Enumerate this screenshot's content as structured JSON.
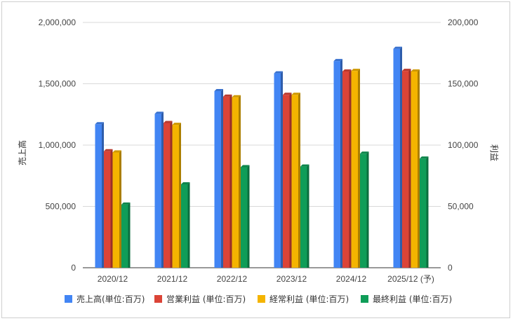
{
  "chart_data": {
    "type": "bar",
    "categories": [
      "2020/12",
      "2021/12",
      "2022/12",
      "2023/12",
      "2024/12",
      "2025/12 (予)"
    ],
    "series": [
      {
        "name": "売上高(単位:百万)",
        "axis": "left",
        "color": "#4285f4",
        "values": [
          1170000,
          1255000,
          1440000,
          1585000,
          1685000,
          1785000
        ]
      },
      {
        "name": "営業利益 (単位:百万)",
        "axis": "right",
        "color": "#db4437",
        "values": [
          95000,
          118000,
          139500,
          141000,
          160000,
          160500
        ]
      },
      {
        "name": "経常利益 (単位:百万)",
        "axis": "right",
        "color": "#f4b400",
        "values": [
          94000,
          116500,
          139000,
          141000,
          160500,
          160000
        ]
      },
      {
        "name": "最終利益 (単位:百万)",
        "axis": "right",
        "color": "#0f9d58",
        "values": [
          51500,
          68000,
          82000,
          82500,
          93000,
          89000
        ]
      }
    ],
    "y_left": {
      "label": "売上高",
      "range": [
        0,
        2000000
      ],
      "ticks": [
        "0",
        "500,000",
        "1,000,000",
        "1,500,000",
        "2,000,000"
      ]
    },
    "y_right": {
      "label": "利益",
      "range": [
        0,
        200000
      ],
      "ticks": [
        "0",
        "50,000",
        "100,000",
        "150,000",
        "200,000"
      ]
    },
    "grid": true,
    "legend_position": "bottom"
  }
}
